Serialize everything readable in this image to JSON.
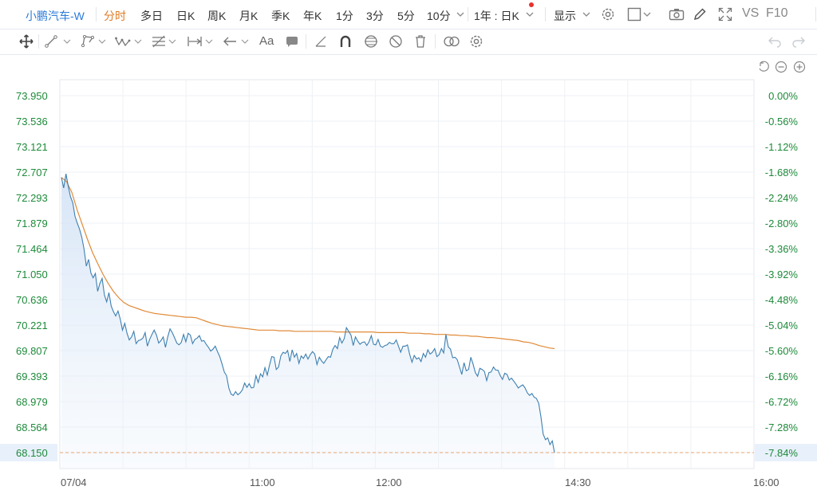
{
  "toolbar": {
    "symbol": "小鹏汽车-W",
    "tabs": [
      "分时",
      "多日",
      "日K",
      "周K",
      "月K",
      "季K",
      "年K",
      "1分",
      "3分",
      "5分",
      "10分"
    ],
    "period_select": "1年 : 日K",
    "display_label": "显示",
    "vs_label": "VS",
    "f10_label": "F10",
    "accent_color": "#e07b22",
    "link_color": "#2b7bd9",
    "notification_color": "#e8312b"
  },
  "drawing_tools": [
    "move-icon",
    "line-tool-icon",
    "polyline-tool-icon",
    "wave-tool-icon",
    "fib-tool-icon",
    "measure-tool-icon",
    "arrow-tool-icon",
    "text-tool-icon",
    "comment-tool-icon",
    "ruler-icon",
    "magnet-icon",
    "lock-drawings-icon",
    "hide-drawings-icon",
    "delete-drawings-icon",
    "link-icon",
    "settings-icon",
    "undo-icon",
    "redo-icon"
  ],
  "chart_controls": [
    "reset-icon",
    "zoom-out-icon",
    "zoom-in-icon"
  ],
  "chart_data": {
    "type": "line",
    "date_label": "07/04",
    "x_ticks": [
      "11:00",
      "12:00",
      "14:30",
      "16:00"
    ],
    "y_left_ticks": [
      "73.950",
      "73.536",
      "73.121",
      "72.707",
      "72.293",
      "71.879",
      "71.464",
      "71.050",
      "70.636",
      "70.221",
      "69.807",
      "69.393",
      "68.979",
      "68.564",
      "68.150"
    ],
    "y_right_ticks": [
      "0.00%",
      "-0.56%",
      "-1.12%",
      "-1.68%",
      "-2.24%",
      "-2.80%",
      "-3.36%",
      "-3.92%",
      "-4.48%",
      "-5.04%",
      "-5.60%",
      "-6.16%",
      "-6.72%",
      "-7.28%",
      "-7.84%"
    ],
    "ylim": [
      68.15,
      73.95
    ],
    "last_price": 68.15,
    "grid": true,
    "price_color": "#3d7fb0",
    "avg_color": "#e08a38",
    "series": [
      {
        "values": [
          72.62,
          72.45,
          72.68,
          72.48,
          72.31,
          72.21,
          71.99,
          71.88,
          71.78,
          71.65,
          71.46,
          71.18,
          71.29,
          71.07,
          70.99,
          71.06,
          70.77,
          70.9,
          70.98,
          70.71,
          70.6,
          70.75,
          70.53,
          70.44,
          70.37,
          70.45,
          70.32,
          70.14,
          70.25,
          70.09,
          69.98,
          70.03,
          70.12,
          69.92,
          69.97,
          69.98,
          70.01,
          70.1,
          69.88,
          69.99,
          70.07,
          70.14,
          70.06,
          69.93,
          69.97,
          70.03,
          69.86,
          70.03,
          70.16,
          70.1,
          70.02,
          69.93,
          69.9,
          69.94,
          70.07,
          69.95,
          70.09,
          70.06,
          69.92,
          69.99,
          70.01,
          70.05,
          69.96,
          69.97,
          69.91,
          69.86,
          69.8,
          69.83,
          69.88,
          69.79,
          69.71,
          69.59,
          69.46,
          69.4,
          69.2,
          69.1,
          69.08,
          69.14,
          69.09,
          69.12,
          69.17,
          69.28,
          69.21,
          69.27,
          69.2,
          69.21,
          69.4,
          69.29,
          69.43,
          69.38,
          69.53,
          69.41,
          69.57,
          69.71,
          69.7,
          69.5,
          69.54,
          69.72,
          69.78,
          69.76,
          69.81,
          69.63,
          69.82,
          69.7,
          69.76,
          69.6,
          69.72,
          69.68,
          69.75,
          69.67,
          69.74,
          69.79,
          69.75,
          69.58,
          69.7,
          69.64,
          69.6,
          69.66,
          69.71,
          69.7,
          69.83,
          69.89,
          69.84,
          70.02,
          69.93,
          70.0,
          70.18,
          70.12,
          70.06,
          69.89,
          70.03,
          69.96,
          69.91,
          69.94,
          69.95,
          69.89,
          69.95,
          70.05,
          69.91,
          69.9,
          69.99,
          69.88,
          69.86,
          69.89,
          69.9,
          69.94,
          69.92,
          69.92,
          69.98,
          69.88,
          69.78,
          69.88,
          69.88,
          69.9,
          69.74,
          69.62,
          69.73,
          69.67,
          69.69,
          69.63,
          69.76,
          69.7,
          69.82,
          69.75,
          69.78,
          69.84,
          69.71,
          69.74,
          69.84,
          69.77,
          70.07,
          69.87,
          69.83,
          69.69,
          69.7,
          69.66,
          69.54,
          69.42,
          69.61,
          69.48,
          69.5,
          69.7,
          69.59,
          69.45,
          69.39,
          69.52,
          69.5,
          69.47,
          69.32,
          69.45,
          69.46,
          69.54,
          69.49,
          69.49,
          69.4,
          69.34,
          69.44,
          69.42,
          69.33,
          69.36,
          69.31,
          69.26,
          69.2,
          69.23,
          69.25,
          69.2,
          69.12,
          69.08,
          69.11,
          69.05,
          69.03,
          68.95,
          68.73,
          68.45,
          68.36,
          68.39,
          68.28,
          68.34,
          68.15
        ]
      },
      {
        "values": [
          72.62,
          72.55,
          72.38,
          72.1,
          71.86,
          71.62,
          71.4,
          71.22,
          71.05,
          70.9,
          70.77,
          70.67,
          70.59,
          70.54,
          70.51,
          70.48,
          70.45,
          70.43,
          70.41,
          70.4,
          70.39,
          70.38,
          70.37,
          70.36,
          70.35,
          70.35,
          70.34,
          70.31,
          70.28,
          70.25,
          70.23,
          70.21,
          70.2,
          70.19,
          70.18,
          70.17,
          70.16,
          70.15,
          70.14,
          70.14,
          70.14,
          70.14,
          70.13,
          70.13,
          70.13,
          70.12,
          70.12,
          70.12,
          70.12,
          70.12,
          70.12,
          70.12,
          70.12,
          70.11,
          70.11,
          70.11,
          70.11,
          70.11,
          70.11,
          70.11,
          70.11,
          70.1,
          70.1,
          70.1,
          70.1,
          70.1,
          70.1,
          70.09,
          70.09,
          70.09,
          70.08,
          70.08,
          70.07,
          70.07,
          70.07,
          70.06,
          70.06,
          70.05,
          70.05,
          70.04,
          70.04,
          70.03,
          70.02,
          70.02,
          70.01,
          70.0,
          69.99,
          69.98,
          69.97,
          69.95,
          69.94,
          69.92,
          69.89,
          69.87,
          69.85,
          69.84
        ]
      }
    ]
  }
}
